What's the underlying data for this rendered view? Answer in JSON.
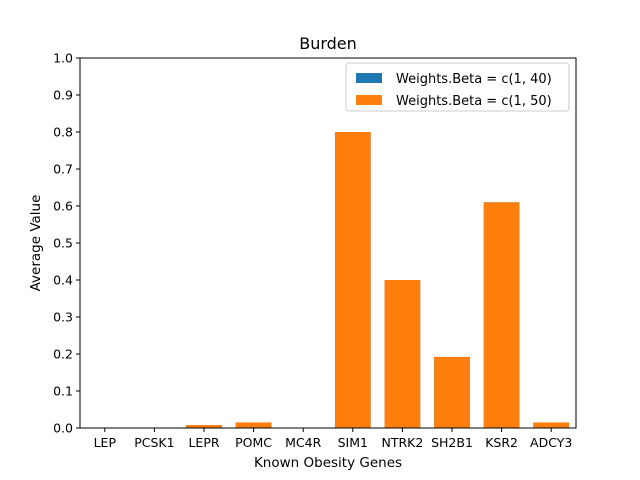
{
  "chart_data": {
    "type": "bar",
    "title": "Burden",
    "xlabel": "Known Obesity Genes",
    "ylabel": "Average Value",
    "ylim": [
      0,
      1.0
    ],
    "yticks": [
      "0.0",
      "0.1",
      "0.2",
      "0.3",
      "0.4",
      "0.5",
      "0.6",
      "0.7",
      "0.8",
      "0.9",
      "1.0"
    ],
    "categories": [
      "LEP",
      "PCSK1",
      "LEPR",
      "POMC",
      "MC4R",
      "SIM1",
      "NTRK2",
      "SH2B1",
      "KSR2",
      "ADCY3"
    ],
    "series": [
      {
        "name": "Weights.Beta = c(1, 40)",
        "color": "#1f77b4",
        "values": [
          0,
          0,
          0.008,
          0.015,
          0,
          0.8,
          0.4,
          0.192,
          0.61,
          0.015
        ]
      },
      {
        "name": "Weights.Beta = c(1, 50)",
        "color": "#ff7f0e",
        "values": [
          0,
          0,
          0.008,
          0.015,
          0,
          0.8,
          0.4,
          0.192,
          0.61,
          0.015
        ]
      }
    ],
    "grid": false,
    "legend_position": "top-right"
  }
}
